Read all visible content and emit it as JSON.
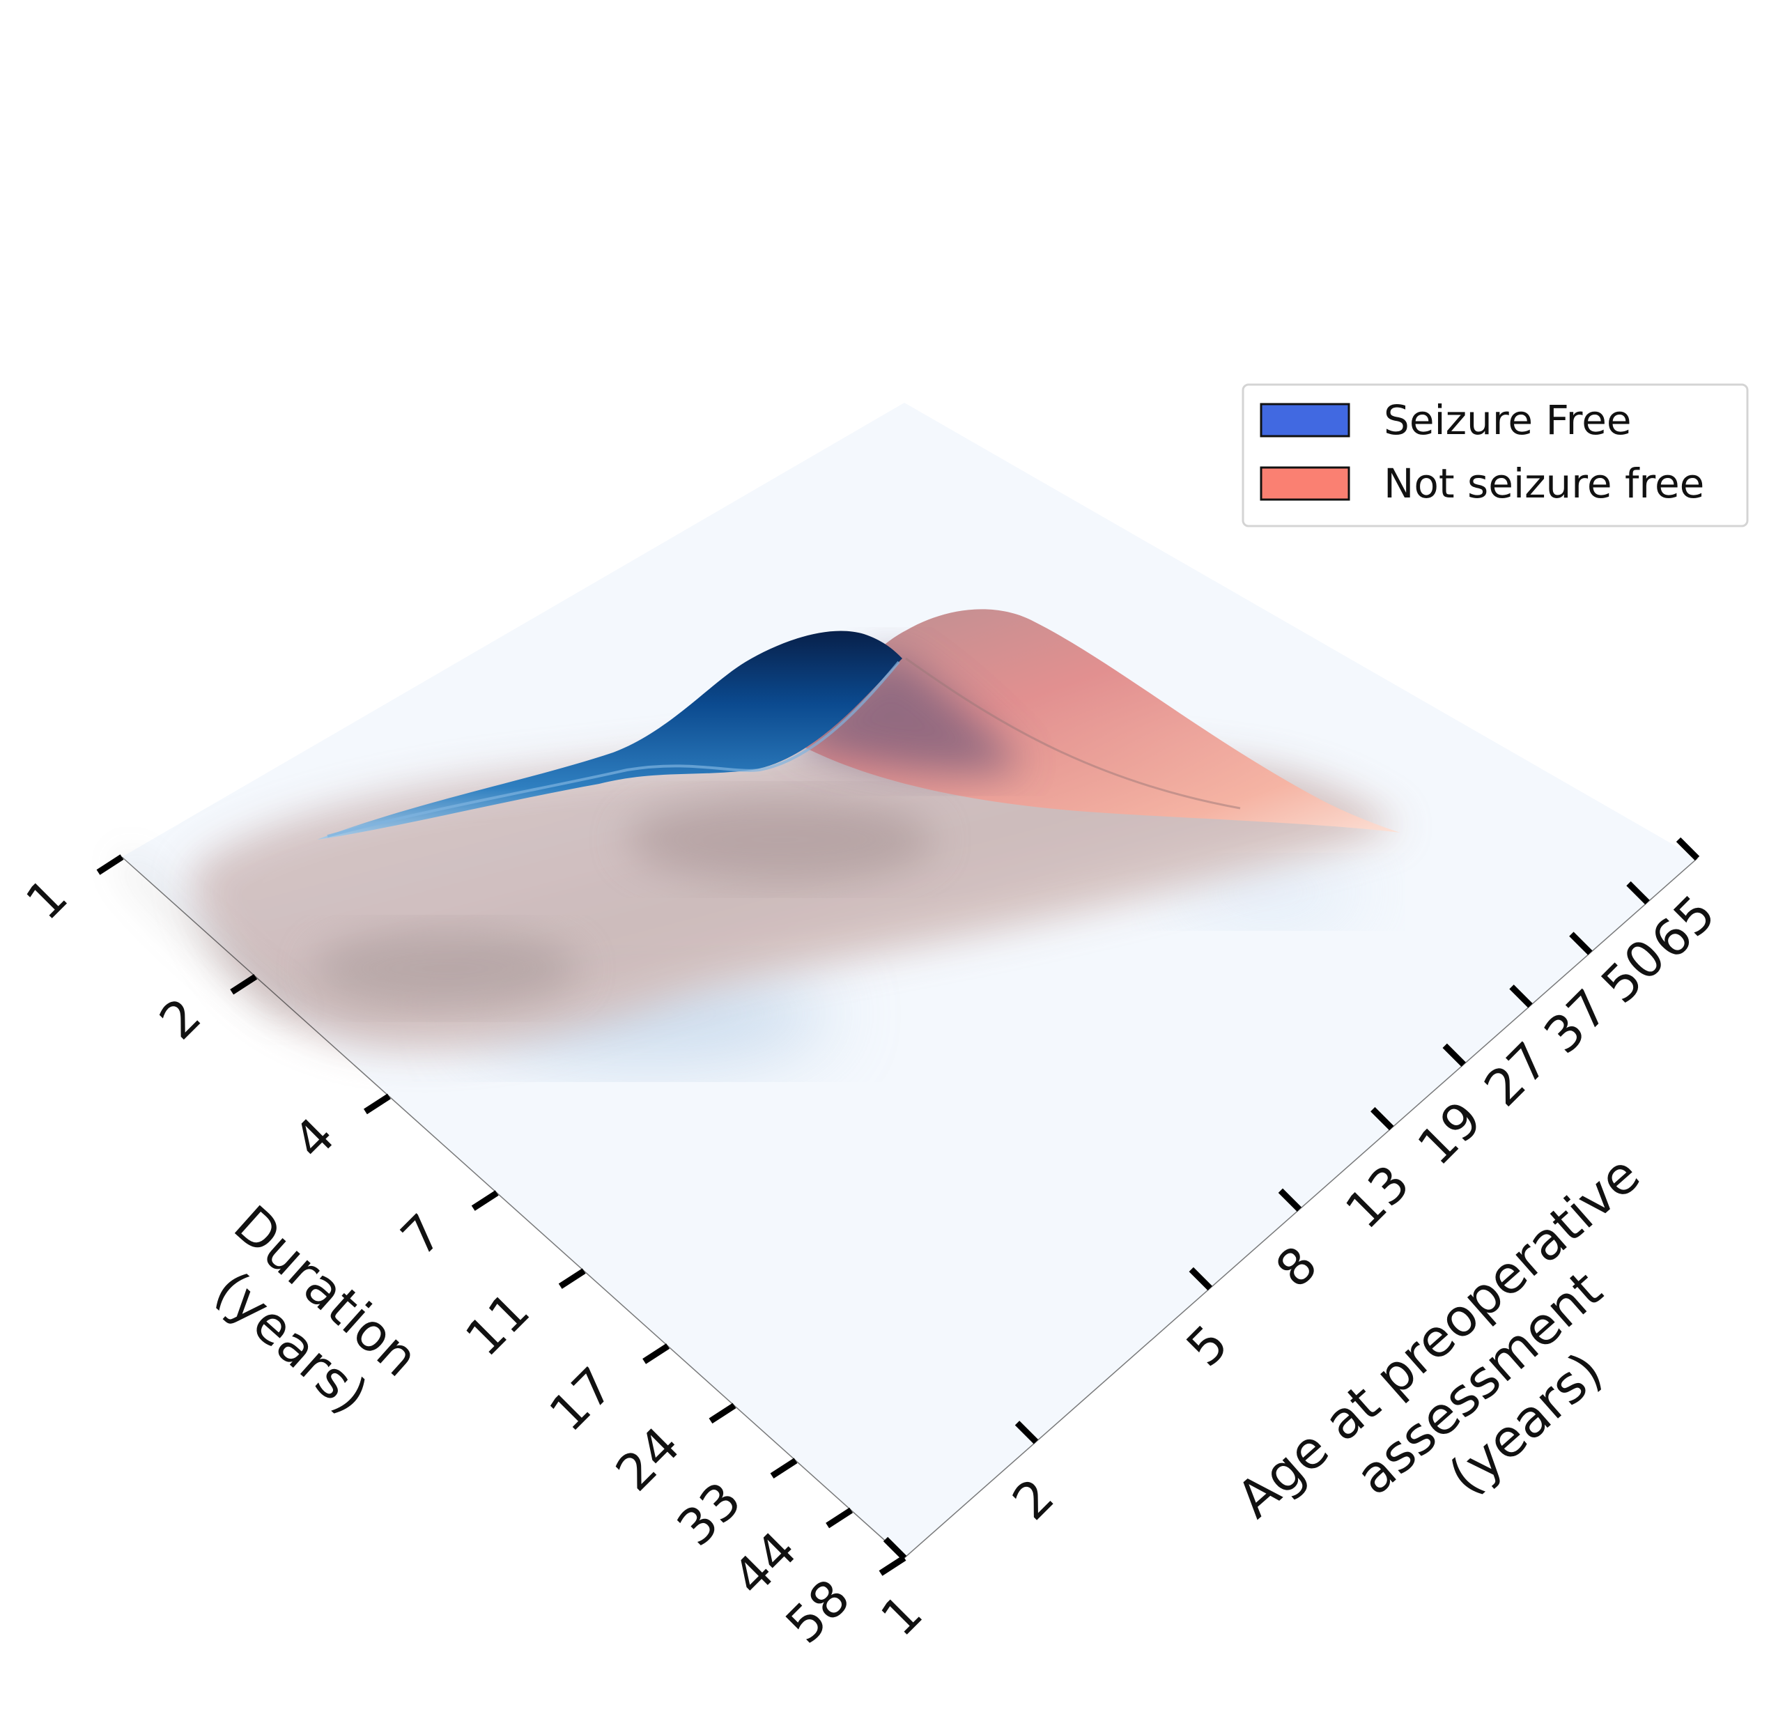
{
  "chart_data": {
    "type": "surface3d",
    "title": "",
    "x_axis": {
      "label_lines": [
        "Duration",
        "(years)"
      ],
      "ticks": [
        "1",
        "2",
        "4",
        "7",
        "11",
        "17",
        "24",
        "33",
        "44",
        "58"
      ],
      "scale": "log",
      "range": [
        1,
        58
      ]
    },
    "y_axis": {
      "label_lines": [
        "Age at preoperative",
        "assessment",
        "(years)"
      ],
      "ticks": [
        "1",
        "2",
        "5",
        "8",
        "13",
        "19",
        "27",
        "37",
        "50",
        "65"
      ],
      "scale": "log",
      "range": [
        1,
        65
      ]
    },
    "legend": {
      "position": "top-right",
      "entries": [
        {
          "label": "Seizure Free",
          "color": "#4169e1"
        },
        {
          "label": "Not seizure free",
          "color": "#fa8072"
        }
      ]
    },
    "series": [
      {
        "name": "Seizure Free",
        "colormap": "Blues",
        "peak": {
          "duration_years": 2,
          "age_years": 27
        }
      },
      {
        "name": "Not seizure free",
        "colormap": "Reds",
        "peak": {
          "duration_years": 2,
          "age_years": 44
        }
      }
    ],
    "grid": false
  }
}
